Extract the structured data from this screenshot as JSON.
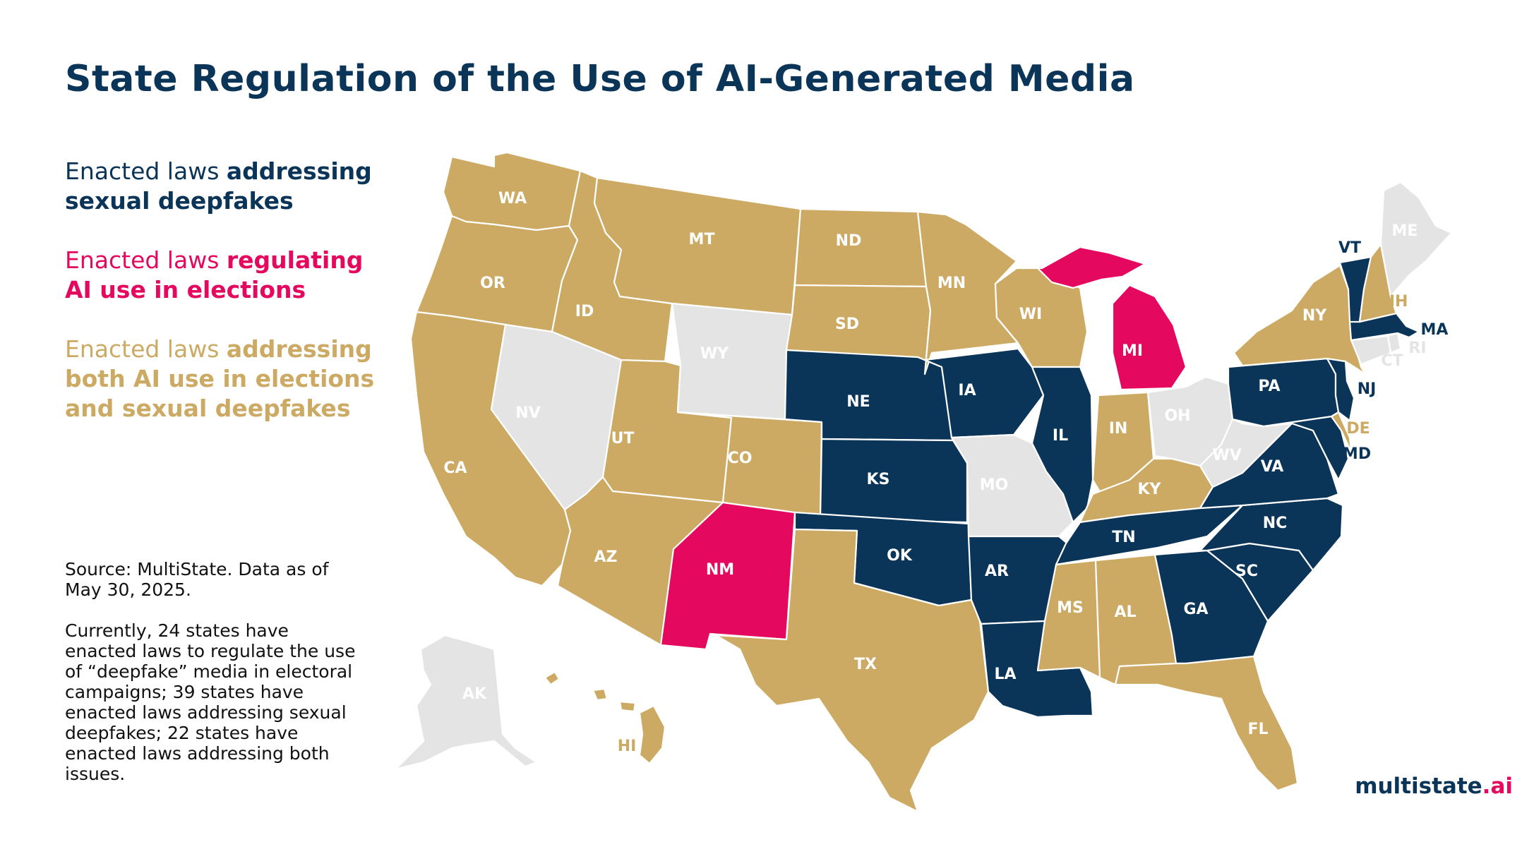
{
  "title": "State Regulation of the Use of AI-Generated Media",
  "legend": {
    "sexual": {
      "prefix": "Enacted laws ",
      "strong": "addressing sexual deepfakes"
    },
    "elections": {
      "prefix": "Enacted laws ",
      "strong": "regulating AI use in elections"
    },
    "both": {
      "prefix": "Enacted laws ",
      "strong": "addressing both AI use in elections and sexual deepfakes"
    }
  },
  "source": "Source: MultiState. Data as of May 30, 2025.",
  "summary": "Currently, 24 states have enacted laws to regulate the use of “deepfake” media in electoral campaigns; 39 states have enacted laws addressing sexual deepfakes; 22 states have enacted laws addressing both issues.",
  "brand": {
    "main": "multistate",
    "suffix": ".ai"
  },
  "colors": {
    "sexual": "#0b3558",
    "elections": "#e4095f",
    "both": "#ccaa63",
    "none": "#e4e4e4"
  },
  "states": {
    "WA": "both",
    "OR": "both",
    "CA": "both",
    "ID": "both",
    "NV": "none",
    "UT": "both",
    "AZ": "both",
    "MT": "both",
    "WY": "none",
    "CO": "both",
    "NM": "elections",
    "ND": "both",
    "SD": "both",
    "NE": "sexual",
    "KS": "sexual",
    "OK": "sexual",
    "TX": "both",
    "MN": "both",
    "IA": "sexual",
    "MO": "none",
    "AR": "sexual",
    "LA": "sexual",
    "WI": "both",
    "IL": "sexual",
    "MI": "elections",
    "IN": "both",
    "OH": "none",
    "KY": "both",
    "TN": "sexual",
    "MS": "both",
    "AL": "both",
    "GA": "sexual",
    "FL": "both",
    "SC": "sexual",
    "NC": "sexual",
    "VA": "sexual",
    "WV": "none",
    "MD": "sexual",
    "DE": "both",
    "PA": "sexual",
    "NJ": "sexual",
    "NY": "both",
    "CT": "none",
    "RI": "none",
    "MA": "sexual",
    "VT": "sexual",
    "NH": "both",
    "ME": "none",
    "AK": "none",
    "HI": "both"
  }
}
